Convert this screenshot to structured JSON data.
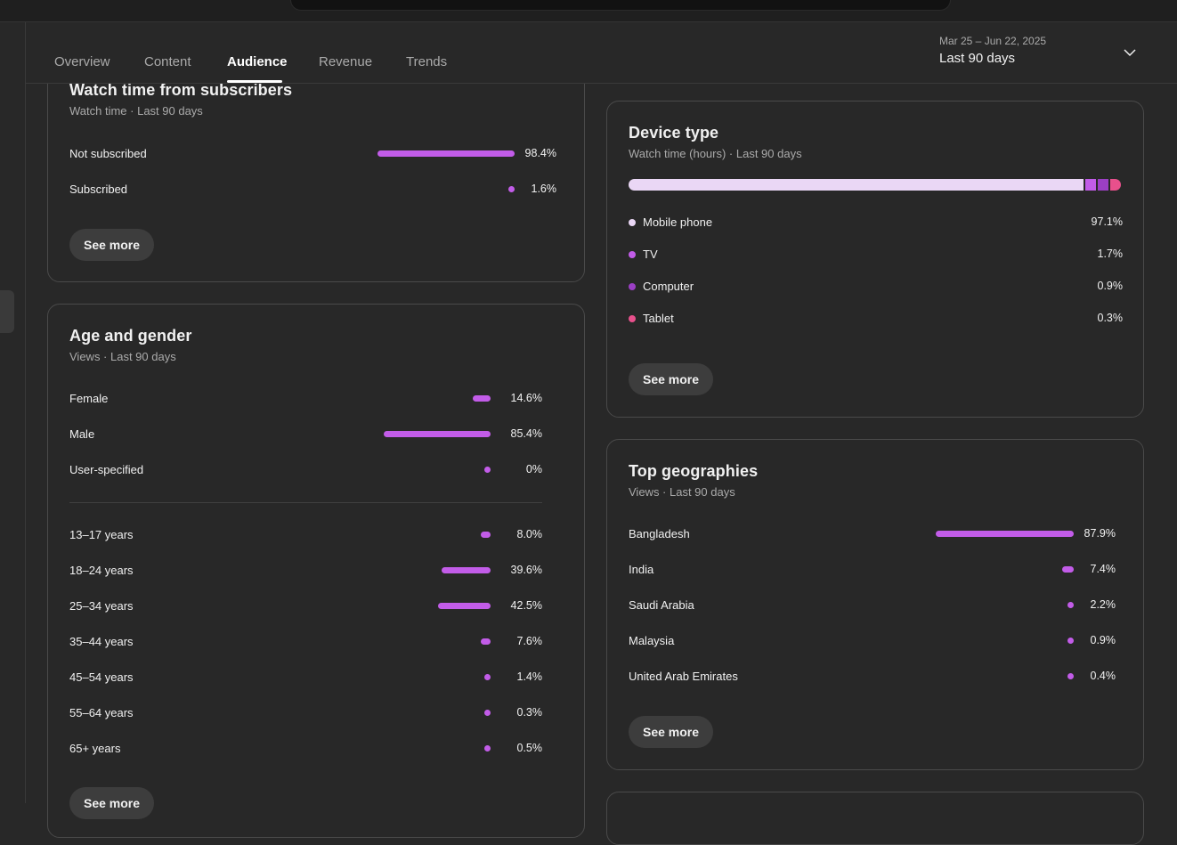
{
  "nav": {
    "tabs": [
      {
        "label": "Overview"
      },
      {
        "label": "Content"
      },
      {
        "label": "Audience"
      },
      {
        "label": "Revenue"
      },
      {
        "label": "Trends"
      }
    ],
    "active_tab": "Audience",
    "date_range": "Mar 25 – Jun 22, 2025",
    "period": "Last 90 days"
  },
  "colors": {
    "accent": "#c25ce8",
    "background": "#282828",
    "card_border": "#4a4a4a"
  },
  "subscribers": {
    "title": "Watch time from subscribers",
    "subtitle": "Watch time · Last 90 days",
    "rows": [
      {
        "label": "Not subscribed",
        "value": "98.4%",
        "pct": 98.4
      },
      {
        "label": "Subscribed",
        "value": "1.6%",
        "pct": 1.6
      }
    ],
    "see_more": "See more"
  },
  "age_gender": {
    "title": "Age and gender",
    "subtitle": "Views · Last 90 days",
    "gender": [
      {
        "label": "Female",
        "value": "14.6%",
        "pct": 14.6
      },
      {
        "label": "Male",
        "value": "85.4%",
        "pct": 85.4
      },
      {
        "label": "User-specified",
        "value": "0%",
        "pct": 0
      }
    ],
    "ages": [
      {
        "label": "13–17 years",
        "value": "8.0%",
        "pct": 8.0
      },
      {
        "label": "18–24 years",
        "value": "39.6%",
        "pct": 39.6
      },
      {
        "label": "25–34 years",
        "value": "42.5%",
        "pct": 42.5
      },
      {
        "label": "35–44 years",
        "value": "7.6%",
        "pct": 7.6
      },
      {
        "label": "45–54 years",
        "value": "1.4%",
        "pct": 1.4
      },
      {
        "label": "55–64 years",
        "value": "0.3%",
        "pct": 0.3
      },
      {
        "label": "65+ years",
        "value": "0.5%",
        "pct": 0.5
      }
    ],
    "see_more": "See more"
  },
  "device": {
    "title": "Device type",
    "subtitle": "Watch time (hours) · Last 90 days",
    "rows": [
      {
        "label": "Mobile phone",
        "value": "97.1%",
        "pct": 97.1,
        "color": "#ead7f5"
      },
      {
        "label": "TV",
        "value": "1.7%",
        "pct": 1.7,
        "color": "#c25ce8"
      },
      {
        "label": "Computer",
        "value": "0.9%",
        "pct": 0.9,
        "color": "#9b3fc4"
      },
      {
        "label": "Tablet",
        "value": "0.3%",
        "pct": 0.3,
        "color": "#e8508c"
      }
    ],
    "see_more": "See more"
  },
  "geo": {
    "title": "Top geographies",
    "subtitle": "Views · Last 90 days",
    "rows": [
      {
        "label": "Bangladesh",
        "value": "87.9%",
        "pct": 87.9
      },
      {
        "label": "India",
        "value": "7.4%",
        "pct": 7.4
      },
      {
        "label": "Saudi Arabia",
        "value": "2.2%",
        "pct": 2.2
      },
      {
        "label": "Malaysia",
        "value": "0.9%",
        "pct": 0.9
      },
      {
        "label": "United Arab Emirates",
        "value": "0.4%",
        "pct": 0.4
      }
    ],
    "see_more": "See more"
  }
}
